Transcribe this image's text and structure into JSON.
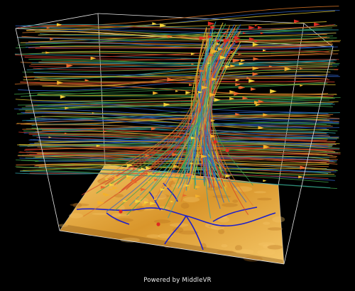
{
  "footer": {
    "caption": "Powered by MiddleVR"
  },
  "scene": {
    "background_color": "#000000",
    "box_edge_color": "#e6e6e6",
    "terrain_color": "#d9962b",
    "terrain_highlight": "#f5c768",
    "river_color": "#2020c8",
    "streamline_colors": [
      "#d43a2a",
      "#e07a2a",
      "#d8c030",
      "#3fa34a",
      "#2f62c6",
      "#30a0a8"
    ],
    "particle_colors": [
      "#f3b12b",
      "#f4d23a",
      "#e8682c",
      "#e02a20"
    ]
  }
}
